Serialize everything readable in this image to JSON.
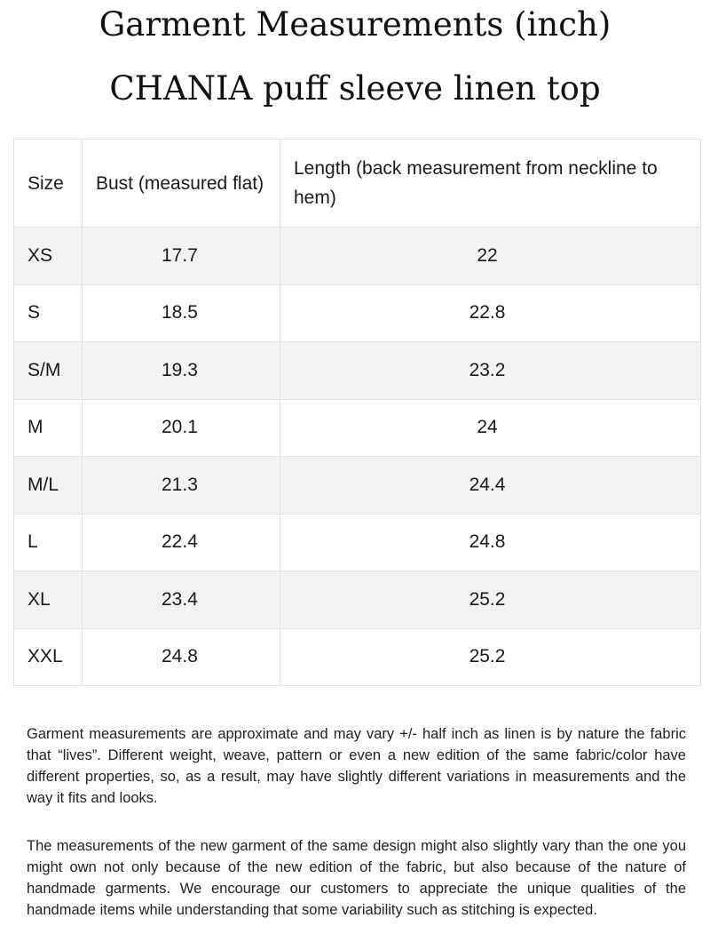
{
  "header": {
    "title_line1": "Garment Measurements (inch)",
    "title_line2": "CHANIA puff sleeve linen top"
  },
  "table": {
    "columns": [
      "Size",
      "Bust (measured flat)",
      "Length (back measurement from neckline to hem)"
    ],
    "rows": [
      {
        "size": "XS",
        "bust": "17.7",
        "length": "22"
      },
      {
        "size": "S",
        "bust": "18.5",
        "length": "22.8"
      },
      {
        "size": "S/M",
        "bust": "19.3",
        "length": "23.2"
      },
      {
        "size": "M",
        "bust": "20.1",
        "length": "24"
      },
      {
        "size": "M/L",
        "bust": "21.3",
        "length": "24.4"
      },
      {
        "size": "L",
        "bust": "22.4",
        "length": "24.8"
      },
      {
        "size": "XL",
        "bust": "23.4",
        "length": "25.2"
      },
      {
        "size": "XXL",
        "bust": "24.8",
        "length": "25.2"
      }
    ]
  },
  "notes": {
    "paragraph1": "Garment measurements are approximate and may vary +/- half inch as linen is by nature the fabric that “lives”. Different weight, weave, pattern or even a new edition of the same fabric/color have different properties, so, as a result, may have slightly different variations in measurements and the way it fits and looks.",
    "paragraph2": "The measurements of the new garment of the same design might also slightly vary than the one you might own not only because of the new edition of the fabric, but also because of the nature of handmade garments. We encourage our customers to appreciate the unique qualities of the handmade items while understanding that some variability such as stitching is expected."
  }
}
